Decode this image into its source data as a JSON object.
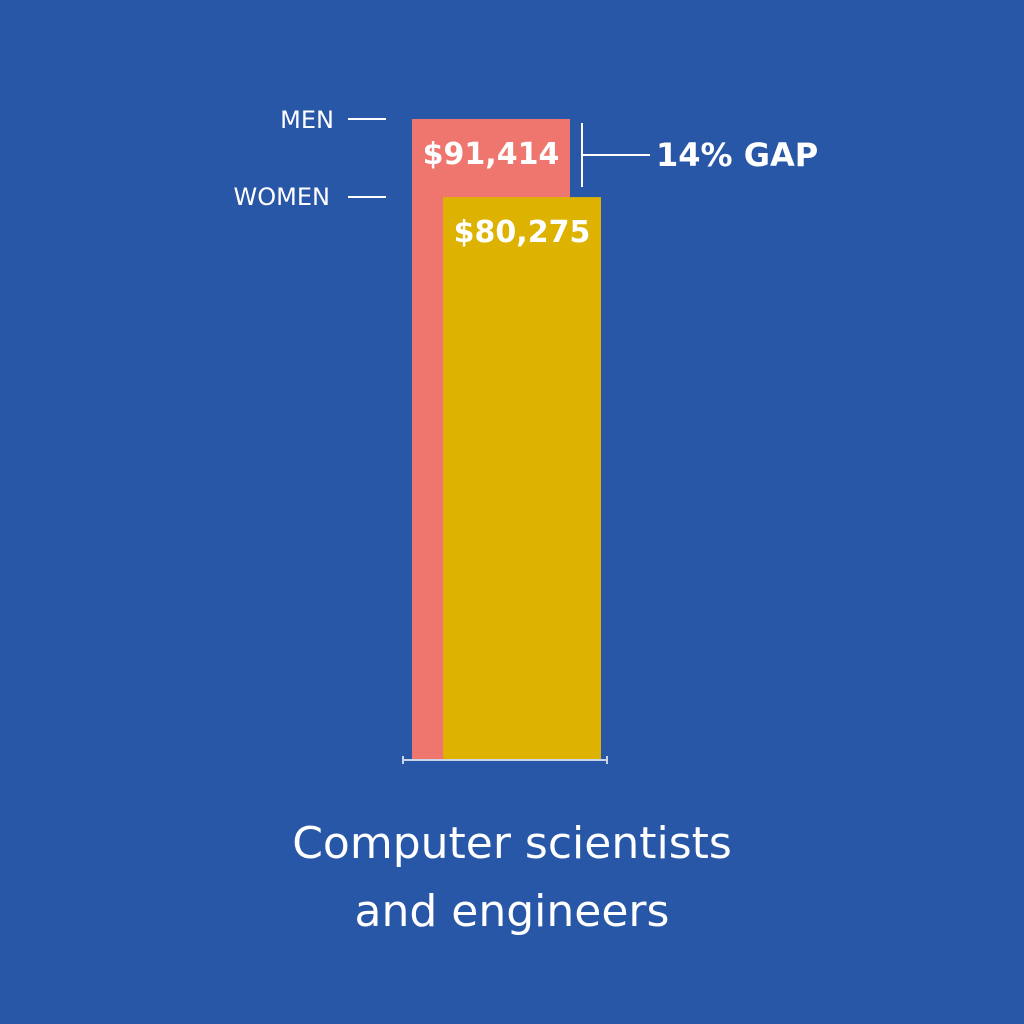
{
  "chart_data": {
    "type": "bar",
    "categories": [
      "Computer scientists and engineers"
    ],
    "series": [
      {
        "name": "MEN",
        "values": [
          91414
        ],
        "value_label": "$91,414",
        "color": "#ef766f"
      },
      {
        "name": "WOMEN",
        "values": [
          80275
        ],
        "value_label": "$80,275",
        "color": "#ddb200"
      }
    ],
    "annotation": "14% GAP",
    "ylim": [
      0,
      91414
    ],
    "grid": false,
    "legend": "left"
  },
  "caption": {
    "line1": "Computer scientists",
    "line2": "and engineers"
  },
  "colors": {
    "background": "#2957a7",
    "text": "#ffffff"
  }
}
